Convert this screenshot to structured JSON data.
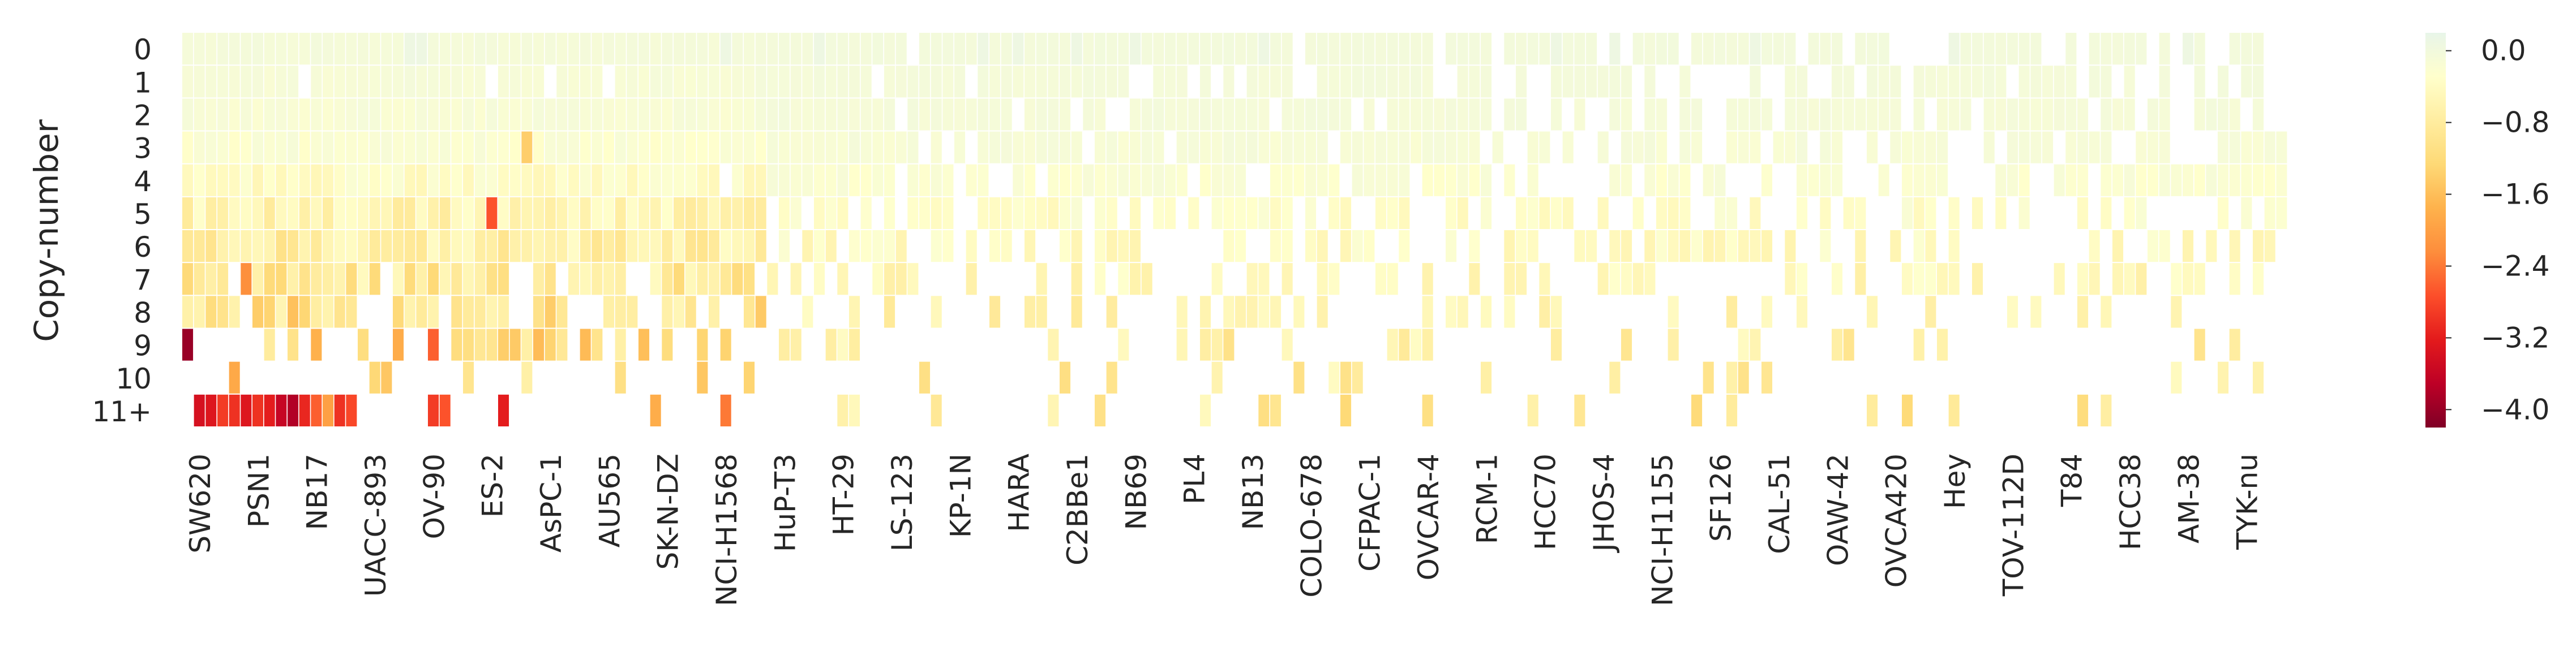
{
  "chart_data": {
    "type": "heatmap",
    "ylabel": "Copy-number",
    "xlabel": "",
    "rows": [
      "0",
      "1",
      "2",
      "3",
      "4",
      "5",
      "6",
      "7",
      "8",
      "9",
      "10",
      "11+"
    ],
    "n_columns": 180,
    "x_tick_labels": [
      {
        "col": 1,
        "label": "SW620"
      },
      {
        "col": 6,
        "label": "PSN1"
      },
      {
        "col": 11,
        "label": "NB17"
      },
      {
        "col": 16,
        "label": "UACC-893"
      },
      {
        "col": 21,
        "label": "OV-90"
      },
      {
        "col": 26,
        "label": "ES-2"
      },
      {
        "col": 31,
        "label": "AsPC-1"
      },
      {
        "col": 36,
        "label": "AU565"
      },
      {
        "col": 41,
        "label": "SK-N-DZ"
      },
      {
        "col": 46,
        "label": "NCI-H1568"
      },
      {
        "col": 51,
        "label": "HuP-T3"
      },
      {
        "col": 56,
        "label": "HT-29"
      },
      {
        "col": 61,
        "label": "LS-123"
      },
      {
        "col": 66,
        "label": "KP-1N"
      },
      {
        "col": 71,
        "label": "HARA"
      },
      {
        "col": 76,
        "label": "C2BBe1"
      },
      {
        "col": 81,
        "label": "NB69"
      },
      {
        "col": 86,
        "label": "PL4"
      },
      {
        "col": 91,
        "label": "NB13"
      },
      {
        "col": 96,
        "label": "COLO-678"
      },
      {
        "col": 101,
        "label": "CFPAC-1"
      },
      {
        "col": 106,
        "label": "OVCAR-4"
      },
      {
        "col": 111,
        "label": "RCM-1"
      },
      {
        "col": 116,
        "label": "HCC70"
      },
      {
        "col": 121,
        "label": "JHOS-4"
      },
      {
        "col": 126,
        "label": "NCI-H1155"
      },
      {
        "col": 131,
        "label": "SF126"
      },
      {
        "col": 136,
        "label": "CAL-51"
      },
      {
        "col": 141,
        "label": "OAW-42"
      },
      {
        "col": 146,
        "label": "OVCA420"
      },
      {
        "col": 151,
        "label": "Hey"
      },
      {
        "col": 156,
        "label": "TOV-112D"
      },
      {
        "col": 161,
        "label": "T84"
      },
      {
        "col": 166,
        "label": "HCC38"
      },
      {
        "col": 171,
        "label": "AM-38"
      },
      {
        "col": 176,
        "label": "TYK-nu"
      }
    ],
    "colorbar": {
      "min": -4.2,
      "max": 0.2,
      "ticks": [
        "0.0",
        "−0.8",
        "−1.6",
        "−2.4",
        "−3.2",
        "−4.0"
      ],
      "tick_values": [
        0.0,
        -0.8,
        -1.6,
        -2.4,
        -3.2,
        -4.0
      ]
    },
    "colormap": [
      "#800026",
      "#bd0026",
      "#e31a1c",
      "#fc4e2a",
      "#fd8d3c",
      "#feb24c",
      "#fed976",
      "#ffeda0",
      "#ffffcc",
      "#e8f5e9"
    ],
    "missing_color": "#ffffff",
    "row_presence": [
      1.0,
      0.97,
      1.0,
      0.99,
      0.96,
      0.78,
      0.66,
      0.5,
      0.4,
      0.3,
      0.2,
      0.14
    ],
    "row_mean_value": [
      -0.05,
      -0.08,
      -0.1,
      -0.15,
      -0.25,
      -0.4,
      -0.5,
      -0.6,
      -0.75,
      -0.9,
      -0.95,
      -1.1
    ],
    "notable_cells": [
      {
        "row": "9",
        "col": 0,
        "value": -4.0
      },
      {
        "row": "11+",
        "col": 1,
        "value": -3.4
      },
      {
        "row": "11+",
        "col": 2,
        "value": -3.3
      },
      {
        "row": "11+",
        "col": 3,
        "value": -2.9
      },
      {
        "row": "11+",
        "col": 4,
        "value": -3.0
      },
      {
        "row": "11+",
        "col": 5,
        "value": -3.3
      },
      {
        "row": "11+",
        "col": 6,
        "value": -3.0
      },
      {
        "row": "11+",
        "col": 7,
        "value": -3.2
      },
      {
        "row": "11+",
        "col": 8,
        "value": -3.6
      },
      {
        "row": "11+",
        "col": 9,
        "value": -3.8
      },
      {
        "row": "11+",
        "col": 10,
        "value": -3.1
      },
      {
        "row": "11+",
        "col": 11,
        "value": -2.6
      },
      {
        "row": "11+",
        "col": 12,
        "value": -2.0
      },
      {
        "row": "11+",
        "col": 13,
        "value": -3.0
      },
      {
        "row": "11+",
        "col": 14,
        "value": -2.8
      },
      {
        "row": "7",
        "col": 5,
        "value": -2.2
      },
      {
        "row": "5",
        "col": 26,
        "value": -2.7
      },
      {
        "row": "11+",
        "col": 27,
        "value": -3.2
      },
      {
        "row": "11+",
        "col": 21,
        "value": -2.9
      },
      {
        "row": "11+",
        "col": 22,
        "value": -2.7
      },
      {
        "row": "9",
        "col": 21,
        "value": -2.6
      },
      {
        "row": "3",
        "col": 29,
        "value": -1.4
      },
      {
        "row": "11+",
        "col": 46,
        "value": -2.4
      }
    ]
  }
}
